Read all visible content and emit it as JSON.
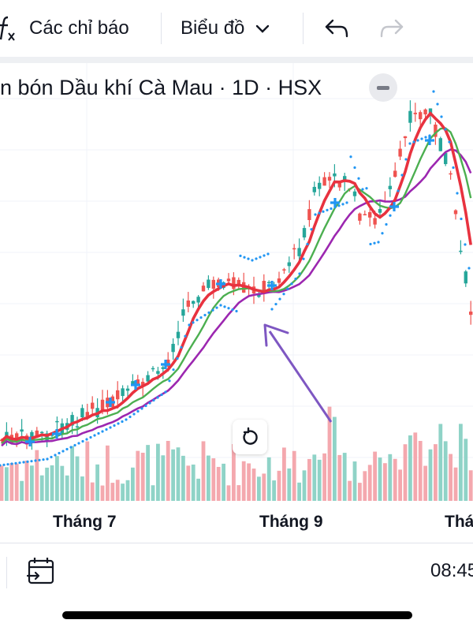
{
  "toolbar": {
    "indicators_label": "Các chỉ báo",
    "chart_label": "Biểu đồ"
  },
  "legend": {
    "title": "n bón Dầu khí Cà Mau · 1D · HSX"
  },
  "x_axis": {
    "labels": [
      "Tháng 7",
      "Tháng 9",
      "Thá"
    ]
  },
  "status": {
    "time": "08:45"
  },
  "colors": {
    "up": "#26a69a",
    "down": "#ef5350",
    "ma_fast": "#e8323f",
    "ma_mid": "#4caf50",
    "ma_slow": "#9c27b0",
    "sar": "#2196f3",
    "arrow": "#7e57c2",
    "vol_up": "#8fd3c7",
    "vol_down": "#f4a8ae"
  },
  "chart_data": {
    "type": "candlestick",
    "title": "n bón Dầu khí Cà Mau · 1D · HSX",
    "xlabel": "",
    "ylabel": "",
    "x_tick_labels": [
      "Tháng 7",
      "Tháng 9",
      "Thá"
    ],
    "series": [
      {
        "name": "",
        "kind": "ohlc",
        "close_trend": [
          10,
          12,
          14,
          17,
          22,
          30,
          40,
          48,
          42,
          50,
          62,
          78,
          82,
          76,
          86,
          95,
          70,
          45
        ]
      },
      {
        "name": "",
        "kind": "volume"
      }
    ]
  }
}
